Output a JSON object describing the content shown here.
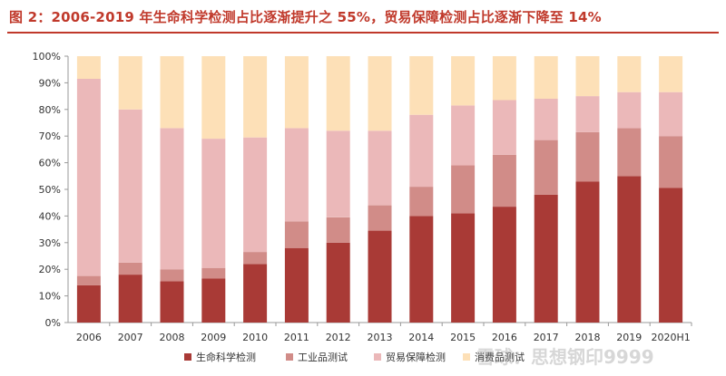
{
  "figure": {
    "title": "图 2：2006-2019 年生命科学检测占比逐渐提升之 55%，贸易保障检测占比逐渐下降至 14%",
    "watermark": "雪球：思想钢印9999"
  },
  "colors": {
    "title": "#c0392b",
    "series": [
      "#a93a36",
      "#d18c88",
      "#ebb8b9",
      "#fde0b7"
    ]
  },
  "chart_data": {
    "type": "bar",
    "stacked": true,
    "categories": [
      "2006",
      "2007",
      "2008",
      "2009",
      "2010",
      "2011",
      "2012",
      "2013",
      "2014",
      "2015",
      "2016",
      "2017",
      "2018",
      "2019",
      "2020H1"
    ],
    "series": [
      {
        "name": "生命科学检测",
        "values": [
          14,
          18,
          15.5,
          16.5,
          22,
          28,
          30,
          34.5,
          40,
          41,
          43.5,
          48,
          53,
          55,
          50.5
        ]
      },
      {
        "name": "工业品测试",
        "values": [
          3.5,
          4.5,
          4.5,
          4,
          4.5,
          10,
          9.5,
          9.5,
          11,
          18,
          19.5,
          20.5,
          18.5,
          18,
          19.5
        ]
      },
      {
        "name": "贸易保障检测",
        "values": [
          74,
          57.5,
          53,
          48.5,
          43,
          35,
          32.5,
          28,
          27,
          22.5,
          20.5,
          15.5,
          13.5,
          13.5,
          16.5
        ]
      },
      {
        "name": "消费品测试",
        "values": [
          8.5,
          20,
          27,
          31,
          30.5,
          27,
          28,
          28,
          22,
          18.5,
          16.5,
          16,
          15,
          13.5,
          13.5
        ]
      }
    ],
    "yticks": [
      "0%",
      "10%",
      "20%",
      "30%",
      "40%",
      "50%",
      "60%",
      "70%",
      "80%",
      "90%",
      "100%"
    ],
    "ylim": [
      0,
      100
    ],
    "grid": false,
    "legend": "bottom"
  }
}
